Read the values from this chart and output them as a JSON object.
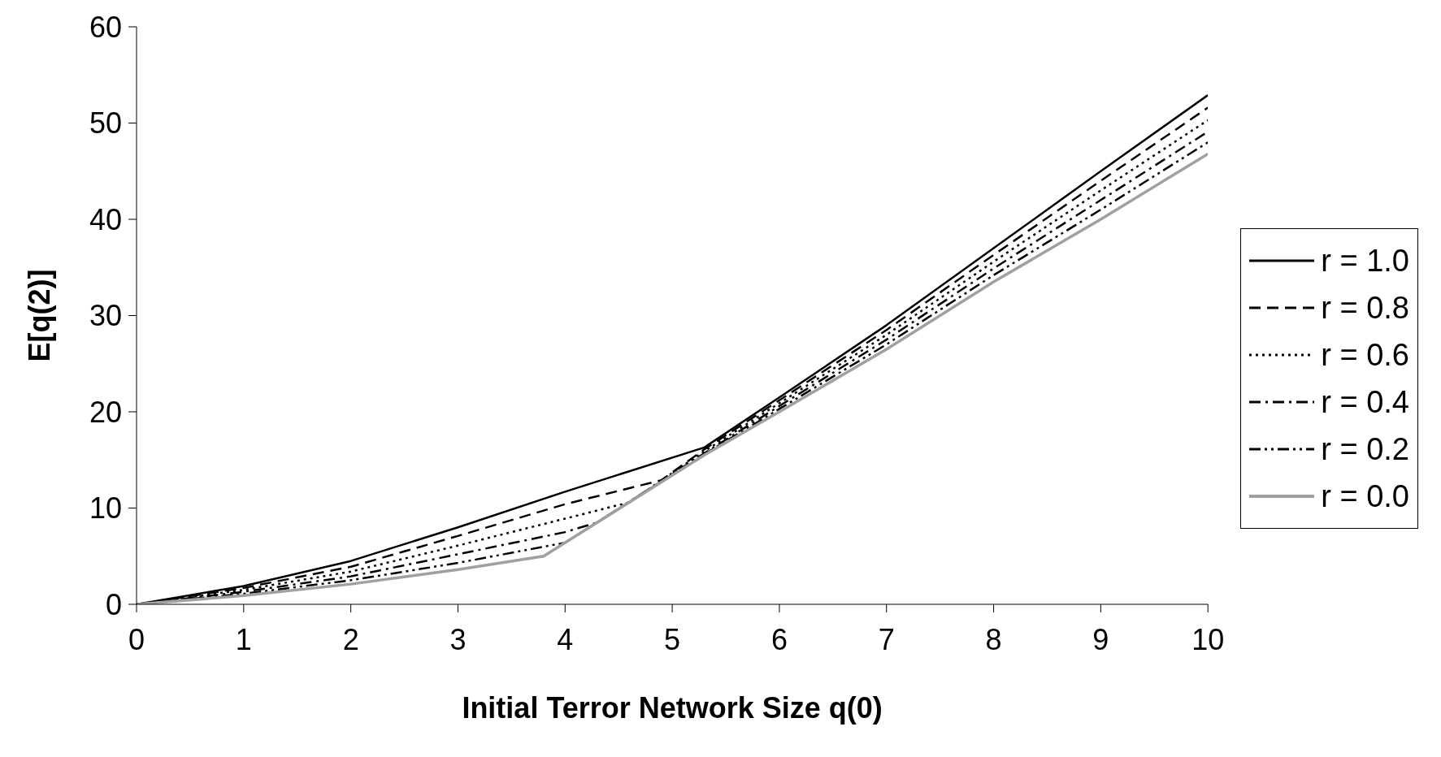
{
  "chart_data": {
    "type": "line",
    "xlabel": "Initial Terror Network Size q(0)",
    "ylabel": "E[q(2)]",
    "xlim": [
      0,
      10
    ],
    "xticks": [
      0,
      1,
      2,
      3,
      4,
      5,
      6,
      7,
      8,
      9,
      10
    ],
    "ylim": [
      0,
      60
    ],
    "yticks": [
      0,
      10,
      20,
      30,
      40,
      50,
      60
    ],
    "grid": false,
    "legend": "right",
    "marker": "none",
    "series": [
      {
        "name": "r = 1.0",
        "color": "#000000",
        "line_style": "solid",
        "x": [
          0,
          1,
          2,
          3,
          4,
          5.3,
          6,
          7,
          8,
          9,
          10
        ],
        "values": [
          0,
          1.9,
          4.5,
          8.0,
          11.7,
          16.3,
          21.5,
          29,
          37,
          45,
          52.9
        ]
      },
      {
        "name": "r = 0.8",
        "color": "#000000",
        "line_style": "dashed",
        "x": [
          0,
          1,
          2,
          3,
          4,
          4.9,
          5.3,
          6,
          7,
          8,
          9,
          10
        ],
        "values": [
          0,
          1.7,
          3.9,
          7.1,
          10.4,
          12.9,
          16.1,
          21.2,
          28.5,
          36.3,
          44,
          51.6
        ]
      },
      {
        "name": "r = 0.6",
        "color": "#000000",
        "line_style": "dotted",
        "x": [
          0,
          1,
          2,
          3,
          4,
          4.6,
          5.3,
          6,
          7,
          8,
          9,
          10
        ],
        "values": [
          0,
          1.5,
          3.4,
          6.1,
          8.9,
          10.6,
          15.9,
          20.9,
          28,
          35.6,
          43,
          50.3
        ]
      },
      {
        "name": "r = 0.4",
        "color": "#000000",
        "line_style": "dashdot",
        "x": [
          0,
          1,
          2,
          3,
          4,
          4.3,
          5.3,
          6,
          7,
          8,
          9,
          10
        ],
        "values": [
          0,
          1.3,
          2.9,
          5.2,
          7.5,
          8.5,
          15.7,
          20.6,
          27.5,
          34.9,
          42,
          49.1
        ]
      },
      {
        "name": "r = 0.2",
        "color": "#000000",
        "line_style": "dashdotdot",
        "x": [
          0,
          1,
          2,
          3,
          4,
          5.3,
          6,
          7,
          8,
          9,
          10
        ],
        "values": [
          0,
          1.1,
          2.5,
          4.3,
          6.4,
          15.6,
          20.3,
          27,
          34.2,
          41,
          48.0
        ]
      },
      {
        "name": "r = 0.0",
        "color": "#a0a0a0",
        "line_style": "solid",
        "x": [
          0,
          1,
          2,
          3,
          3.8,
          5.3,
          6,
          7,
          8,
          9,
          10
        ],
        "values": [
          0,
          0.9,
          2.1,
          3.6,
          5.0,
          15.5,
          20,
          26.5,
          33.5,
          40,
          46.8
        ]
      }
    ]
  }
}
